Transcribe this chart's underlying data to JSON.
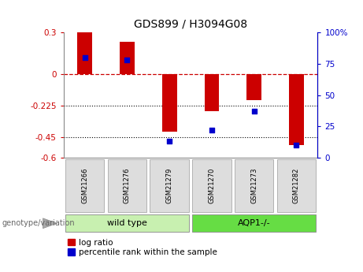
{
  "title": "GDS899 / H3094G08",
  "samples": [
    "GSM21266",
    "GSM21276",
    "GSM21279",
    "GSM21270",
    "GSM21273",
    "GSM21282"
  ],
  "log_ratios": [
    0.3,
    0.235,
    -0.41,
    -0.265,
    -0.185,
    -0.51
  ],
  "percentile_ranks": [
    80,
    78,
    13,
    22,
    37,
    10
  ],
  "groups": [
    "wild type",
    "wild type",
    "wild type",
    "AQP1-/-",
    "AQP1-/-",
    "AQP1-/-"
  ],
  "group_colors": {
    "wild type": "#c8f0b0",
    "AQP1-/-": "#66dd44"
  },
  "bar_color": "#cc0000",
  "dot_color": "#0000cc",
  "ylim_left": [
    -0.6,
    0.3
  ],
  "ylim_right": [
    0,
    100
  ],
  "yticks_left": [
    0.3,
    0,
    -0.225,
    -0.45,
    -0.6
  ],
  "yticks_right": [
    100,
    75,
    50,
    25,
    0
  ],
  "ytick_labels_left": [
    "0.3",
    "0",
    "-0.225",
    "-0.45",
    "-0.6"
  ],
  "ytick_labels_right": [
    "100%",
    "75",
    "50",
    "25",
    "0"
  ],
  "dotted_lines": [
    -0.225,
    -0.45
  ],
  "background_color": "#ffffff",
  "legend_label_red": "log ratio",
  "legend_label_blue": "percentile rank within the sample",
  "genotype_label": "genotype/variation",
  "bar_width": 0.35
}
